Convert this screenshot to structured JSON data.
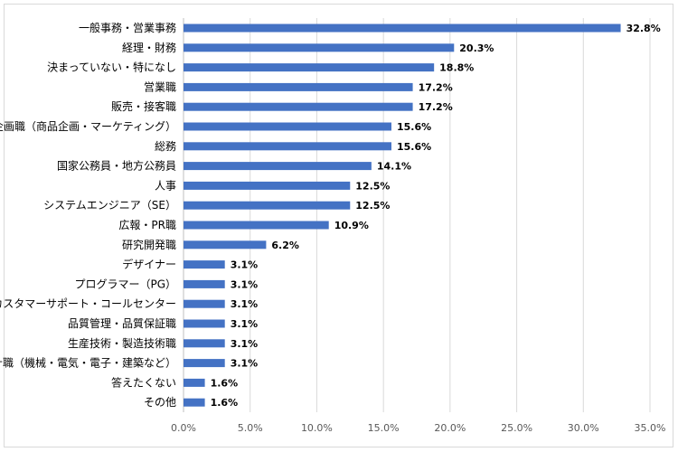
{
  "chart_data": {
    "type": "bar",
    "orientation": "horizontal",
    "categories": [
      "一般事務・営業事務",
      "経理・財務",
      "決まっていない・特になし",
      "営業職",
      "販売・接客職",
      "企画職（商品企画・マーケティング）",
      "総務",
      "国家公務員・地方公務員",
      "人事",
      "システムエンジニア（SE）",
      "広報・PR職",
      "研究開発職",
      "デザイナー",
      "プログラマー（PG）",
      "カスタマーサポート・コールセンター",
      "品質管理・品質保証職",
      "生産技術・製造技術職",
      "設計職（機械・電気・電子・建築など）",
      "答えたくない",
      "その他"
    ],
    "values": [
      32.8,
      20.3,
      18.8,
      17.2,
      17.2,
      15.6,
      15.6,
      14.1,
      12.5,
      12.5,
      10.9,
      6.2,
      3.1,
      3.1,
      3.1,
      3.1,
      3.1,
      3.1,
      1.6,
      1.6
    ],
    "value_labels": [
      "32.8%",
      "20.3%",
      "18.8%",
      "17.2%",
      "17.2%",
      "15.6%",
      "15.6%",
      "14.1%",
      "12.5%",
      "12.5%",
      "10.9%",
      "6.2%",
      "3.1%",
      "3.1%",
      "3.1%",
      "3.1%",
      "3.1%",
      "3.1%",
      "1.6%",
      "1.6%"
    ],
    "xlim": [
      0,
      35
    ],
    "x_ticks": [
      0,
      5,
      10,
      15,
      20,
      25,
      30,
      35
    ],
    "x_tick_labels": [
      "0.0%",
      "5.0%",
      "10.0%",
      "15.0%",
      "20.0%",
      "25.0%",
      "30.0%",
      "35.0%"
    ],
    "grid": true,
    "title": "",
    "xlabel": "",
    "ylabel": ""
  },
  "colors": {
    "bar": "#4472c4",
    "grid": "#d9d9d9",
    "axis": "#bfbfbf"
  }
}
